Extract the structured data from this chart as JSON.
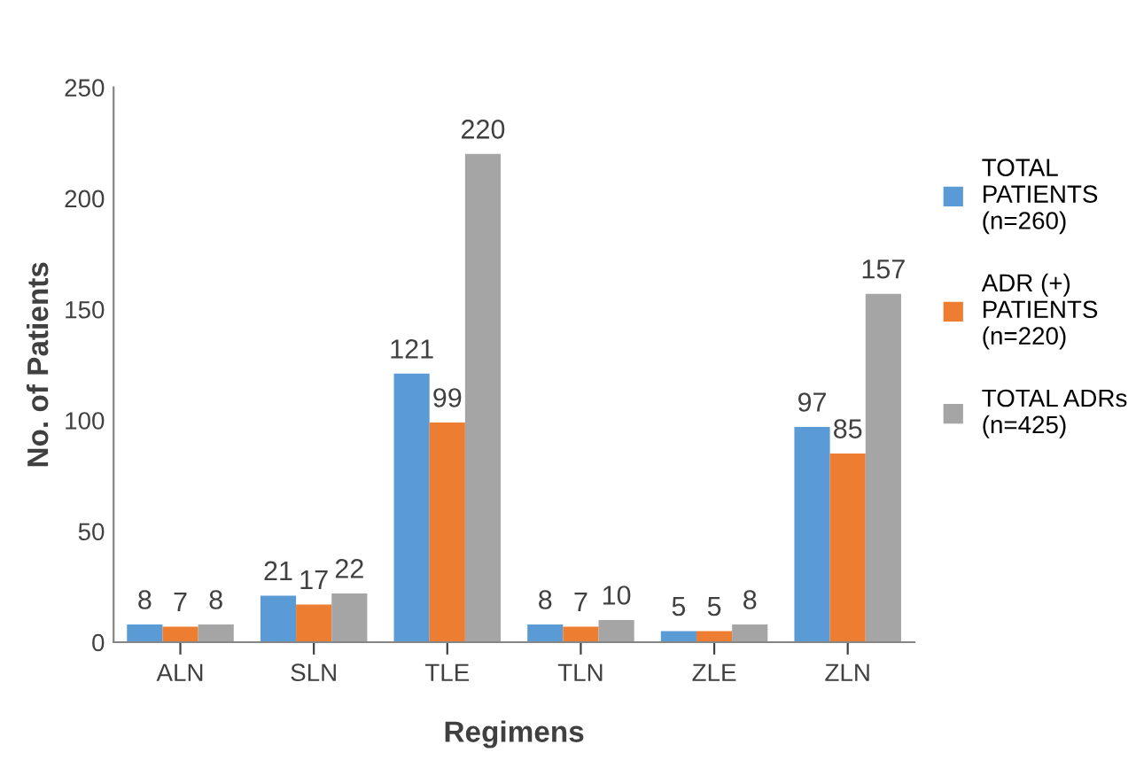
{
  "chart_data": {
    "type": "bar",
    "xlabel": "Regimens",
    "ylabel": "No. of Patients",
    "categories": [
      "ALN",
      "SLN",
      "TLE",
      "TLN",
      "ZLE",
      "ZLN"
    ],
    "series": [
      {
        "name": "TOTAL\nPATIENTS\n(n=260)",
        "color": "#5b9bd5",
        "values": [
          8,
          21,
          121,
          8,
          5,
          97
        ]
      },
      {
        "name": "ADR (+)\nPATIENTS\n(n=220)",
        "color": "#ed7d31",
        "values": [
          7,
          17,
          99,
          7,
          5,
          85
        ]
      },
      {
        "name": "TOTAL ADRs\n(n=425)",
        "color": "#a5a5a5",
        "values": [
          8,
          22,
          220,
          10,
          8,
          157
        ]
      }
    ],
    "ylim": [
      0,
      250
    ],
    "yticks": [
      0,
      50,
      100,
      150,
      200,
      250
    ],
    "grid": false,
    "legend": "right",
    "data_labels": true
  }
}
